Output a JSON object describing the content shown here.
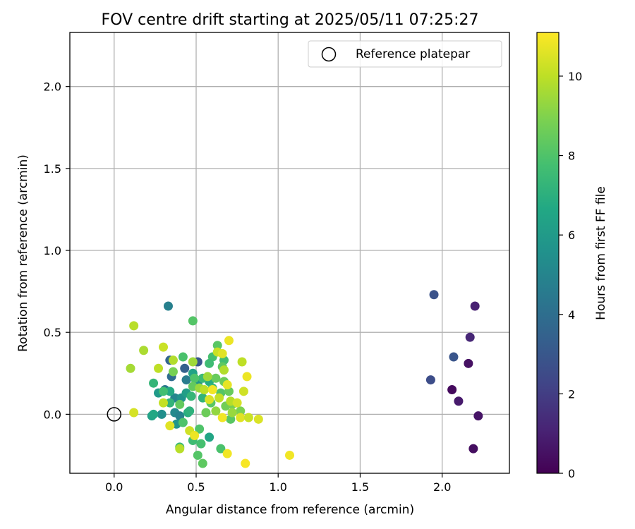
{
  "chart_data": {
    "type": "scatter",
    "title": "FOV centre drift starting at 2025/05/11 07:25:27",
    "xlabel": "Angular distance from reference (arcmin)",
    "ylabel": "Rotation from reference (arcmin)",
    "xlim": [
      -0.27,
      2.41
    ],
    "ylim": [
      -0.36,
      2.33
    ],
    "xticks": [
      "0.0",
      "0.5",
      "1.0",
      "1.5",
      "2.0"
    ],
    "yticks": [
      "0.0",
      "0.5",
      "1.0",
      "1.5",
      "2.0"
    ],
    "grid": true,
    "legend": {
      "position": "top-right",
      "label": "Reference platepar"
    },
    "reference_point": {
      "x": 0.0,
      "y": 0.0
    },
    "colorbar": {
      "label": "Hours from first FF file",
      "colormap": "viridis",
      "range": [
        0,
        11.1
      ],
      "ticks": [
        "0",
        "2",
        "4",
        "6",
        "8",
        "10"
      ]
    },
    "points": [
      {
        "x": 2.19,
        "y": -0.21,
        "c": 0.4
      },
      {
        "x": 2.22,
        "y": -0.01,
        "c": 0.6
      },
      {
        "x": 2.1,
        "y": 0.08,
        "c": 0.8
      },
      {
        "x": 2.06,
        "y": 0.15,
        "c": 0.3
      },
      {
        "x": 2.16,
        "y": 0.31,
        "c": 0.5
      },
      {
        "x": 2.17,
        "y": 0.47,
        "c": 1.2
      },
      {
        "x": 2.2,
        "y": 0.66,
        "c": 1.0
      },
      {
        "x": 1.93,
        "y": 0.21,
        "c": 2.6
      },
      {
        "x": 2.07,
        "y": 0.35,
        "c": 2.9
      },
      {
        "x": 1.95,
        "y": 0.73,
        "c": 2.8
      },
      {
        "x": 0.33,
        "y": 0.66,
        "c": 4.8
      },
      {
        "x": 0.34,
        "y": 0.33,
        "c": 3.6
      },
      {
        "x": 0.35,
        "y": 0.23,
        "c": 3.9
      },
      {
        "x": 0.31,
        "y": 0.15,
        "c": 4.3
      },
      {
        "x": 0.43,
        "y": 0.28,
        "c": 3.4
      },
      {
        "x": 0.51,
        "y": 0.32,
        "c": 3.0
      },
      {
        "x": 0.44,
        "y": 0.21,
        "c": 4.6
      },
      {
        "x": 0.37,
        "y": 0.1,
        "c": 5.0
      },
      {
        "x": 0.41,
        "y": 0.1,
        "c": 5.6
      },
      {
        "x": 0.29,
        "y": 0.0,
        "c": 5.4
      },
      {
        "x": 0.23,
        "y": -0.01,
        "c": 6.3
      },
      {
        "x": 0.24,
        "y": 0.0,
        "c": 6.6
      },
      {
        "x": 0.37,
        "y": 0.01,
        "c": 5.2
      },
      {
        "x": 0.38,
        "y": -0.06,
        "c": 5.8
      },
      {
        "x": 0.4,
        "y": -0.01,
        "c": 4.9
      },
      {
        "x": 0.27,
        "y": 0.13,
        "c": 6.0
      },
      {
        "x": 0.34,
        "y": 0.14,
        "c": 6.7
      },
      {
        "x": 0.44,
        "y": 0.13,
        "c": 6.2
      },
      {
        "x": 0.45,
        "y": 0.01,
        "c": 6.9
      },
      {
        "x": 0.58,
        "y": -0.14,
        "c": 6.5
      },
      {
        "x": 0.51,
        "y": 0.19,
        "c": 5.7
      },
      {
        "x": 0.58,
        "y": 0.2,
        "c": 6.8
      },
      {
        "x": 0.48,
        "y": 0.25,
        "c": 6.4
      },
      {
        "x": 0.24,
        "y": 0.19,
        "c": 7.3
      },
      {
        "x": 0.48,
        "y": 0.57,
        "c": 8.1
      },
      {
        "x": 0.42,
        "y": 0.35,
        "c": 7.9
      },
      {
        "x": 0.54,
        "y": 0.22,
        "c": 7.5
      },
      {
        "x": 0.6,
        "y": 0.35,
        "c": 7.8
      },
      {
        "x": 0.63,
        "y": 0.42,
        "c": 8.2
      },
      {
        "x": 0.67,
        "y": 0.33,
        "c": 7.7
      },
      {
        "x": 0.66,
        "y": 0.29,
        "c": 8.3
      },
      {
        "x": 0.58,
        "y": 0.31,
        "c": 7.6
      },
      {
        "x": 0.49,
        "y": 0.22,
        "c": 8.0
      },
      {
        "x": 0.48,
        "y": 0.17,
        "c": 8.4
      },
      {
        "x": 0.54,
        "y": 0.1,
        "c": 7.2
      },
      {
        "x": 0.6,
        "y": 0.16,
        "c": 7.4
      },
      {
        "x": 0.62,
        "y": 0.22,
        "c": 8.5
      },
      {
        "x": 0.65,
        "y": 0.13,
        "c": 8.1
      },
      {
        "x": 0.67,
        "y": 0.2,
        "c": 8.6
      },
      {
        "x": 0.68,
        "y": 0.05,
        "c": 8.7
      },
      {
        "x": 0.71,
        "y": -0.03,
        "c": 8.2
      },
      {
        "x": 0.72,
        "y": 0.06,
        "c": 8.8
      },
      {
        "x": 0.77,
        "y": 0.02,
        "c": 8.9
      },
      {
        "x": 0.7,
        "y": 0.14,
        "c": 8.5
      },
      {
        "x": 0.52,
        "y": -0.09,
        "c": 8.0
      },
      {
        "x": 0.53,
        "y": -0.18,
        "c": 7.8
      },
      {
        "x": 0.48,
        "y": -0.16,
        "c": 7.6
      },
      {
        "x": 0.51,
        "y": -0.25,
        "c": 8.1
      },
      {
        "x": 0.54,
        "y": -0.3,
        "c": 8.3
      },
      {
        "x": 0.65,
        "y": -0.21,
        "c": 7.9
      },
      {
        "x": 0.4,
        "y": -0.2,
        "c": 7.5
      },
      {
        "x": 0.42,
        "y": -0.05,
        "c": 8.0
      },
      {
        "x": 0.46,
        "y": 0.02,
        "c": 7.1
      },
      {
        "x": 0.56,
        "y": 0.01,
        "c": 8.6
      },
      {
        "x": 0.59,
        "y": 0.07,
        "c": 8.2
      },
      {
        "x": 0.4,
        "y": 0.06,
        "c": 8.4
      },
      {
        "x": 0.34,
        "y": 0.07,
        "c": 7.2
      },
      {
        "x": 0.3,
        "y": 0.14,
        "c": 7.7
      },
      {
        "x": 0.36,
        "y": 0.26,
        "c": 8.8
      },
      {
        "x": 0.47,
        "y": 0.11,
        "c": 7.3
      },
      {
        "x": 0.12,
        "y": 0.54,
        "c": 9.9
      },
      {
        "x": 0.18,
        "y": 0.39,
        "c": 9.7
      },
      {
        "x": 0.3,
        "y": 0.41,
        "c": 10.2
      },
      {
        "x": 0.1,
        "y": 0.28,
        "c": 9.6
      },
      {
        "x": 0.27,
        "y": 0.28,
        "c": 10.0
      },
      {
        "x": 0.36,
        "y": 0.33,
        "c": 9.8
      },
      {
        "x": 0.48,
        "y": 0.32,
        "c": 9.5
      },
      {
        "x": 0.12,
        "y": 0.01,
        "c": 10.4
      },
      {
        "x": 0.3,
        "y": 0.07,
        "c": 10.1
      },
      {
        "x": 0.34,
        "y": -0.07,
        "c": 10.6
      },
      {
        "x": 0.4,
        "y": -0.21,
        "c": 9.9
      },
      {
        "x": 0.46,
        "y": -0.1,
        "c": 10.3
      },
      {
        "x": 0.49,
        "y": -0.13,
        "c": 10.8
      },
      {
        "x": 0.52,
        "y": 0.16,
        "c": 9.4
      },
      {
        "x": 0.55,
        "y": 0.15,
        "c": 10.0
      },
      {
        "x": 0.58,
        "y": 0.09,
        "c": 10.5
      },
      {
        "x": 0.6,
        "y": 0.15,
        "c": 10.9
      },
      {
        "x": 0.63,
        "y": 0.38,
        "c": 10.2
      },
      {
        "x": 0.66,
        "y": 0.37,
        "c": 10.6
      },
      {
        "x": 0.7,
        "y": 0.45,
        "c": 10.8
      },
      {
        "x": 0.67,
        "y": 0.27,
        "c": 9.8
      },
      {
        "x": 0.69,
        "y": 0.18,
        "c": 10.7
      },
      {
        "x": 0.64,
        "y": 0.1,
        "c": 10.1
      },
      {
        "x": 0.66,
        "y": -0.02,
        "c": 10.9
      },
      {
        "x": 0.71,
        "y": 0.08,
        "c": 9.9
      },
      {
        "x": 0.75,
        "y": 0.07,
        "c": 10.4
      },
      {
        "x": 0.77,
        "y": -0.02,
        "c": 10.6
      },
      {
        "x": 0.78,
        "y": 0.32,
        "c": 10.0
      },
      {
        "x": 0.79,
        "y": 0.14,
        "c": 10.3
      },
      {
        "x": 0.81,
        "y": 0.23,
        "c": 10.8
      },
      {
        "x": 0.82,
        "y": -0.02,
        "c": 10.2
      },
      {
        "x": 0.88,
        "y": -0.03,
        "c": 10.5
      },
      {
        "x": 0.69,
        "y": -0.24,
        "c": 10.9
      },
      {
        "x": 0.8,
        "y": -0.3,
        "c": 11.0
      },
      {
        "x": 1.07,
        "y": -0.25,
        "c": 10.9
      },
      {
        "x": 0.62,
        "y": 0.02,
        "c": 9.3
      },
      {
        "x": 0.72,
        "y": 0.01,
        "c": 9.4
      },
      {
        "x": 0.57,
        "y": 0.23,
        "c": 9.5
      }
    ]
  }
}
